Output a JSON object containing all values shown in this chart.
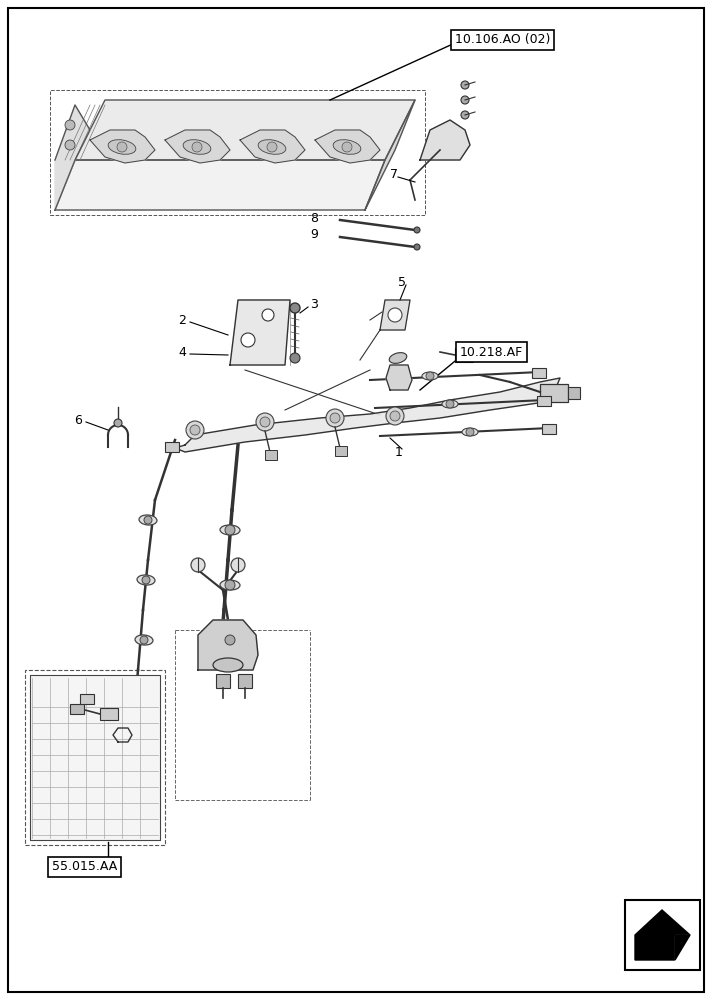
{
  "bg_color": "#ffffff",
  "label_color": "#000000",
  "labels": {
    "ref1": "10.106.AO (02)",
    "ref2": "10.218.AF",
    "ref3": "55.015.AA",
    "num1": "1",
    "num2": "2",
    "num3": "3",
    "num4": "4",
    "num5": "5",
    "num6": "6",
    "num7": "7",
    "num8": "8",
    "num9": "9"
  },
  "figsize": [
    7.12,
    10.0
  ],
  "dpi": 100
}
